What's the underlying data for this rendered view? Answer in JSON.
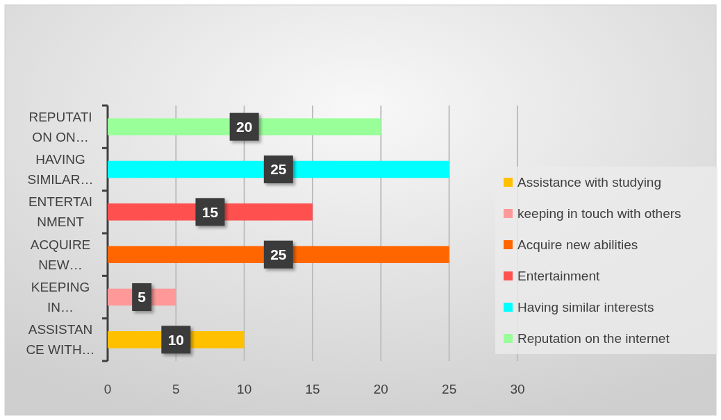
{
  "chart_data": {
    "type": "bar",
    "orientation": "horizontal",
    "categories": [
      "REPUTATI ON ON…",
      "HAVING SIMILAR…",
      "ENTERTAI NMENT",
      "ACQUIRE NEW…",
      "KEEPING IN…",
      "ASSISTAN CE WITH…"
    ],
    "series": [
      {
        "name": "Assistance with studying",
        "color": "#ffc000",
        "values": [
          null,
          null,
          null,
          null,
          null,
          10
        ]
      },
      {
        "name": "keeping in touch with others",
        "color": "#ff9999",
        "values": [
          null,
          null,
          null,
          null,
          5,
          null
        ]
      },
      {
        "name": "Acquire new abilities",
        "color": "#ff6600",
        "values": [
          null,
          null,
          null,
          25,
          null,
          null
        ]
      },
      {
        "name": "Entertainment",
        "color": "#ff5050",
        "values": [
          null,
          null,
          15,
          null,
          null,
          null
        ]
      },
      {
        "name": "Having similar interests",
        "color": "#00ffff",
        "values": [
          null,
          25,
          null,
          null,
          null,
          null
        ]
      },
      {
        "name": "Reputation on the internet",
        "color": "#99ff99",
        "values": [
          20,
          null,
          null,
          null,
          null,
          null
        ]
      }
    ],
    "xlim": [
      0,
      30
    ],
    "xticks": [
      0,
      5,
      10,
      15,
      20,
      25,
      30
    ],
    "grid": "x",
    "legend": "right",
    "data_labels": true
  }
}
